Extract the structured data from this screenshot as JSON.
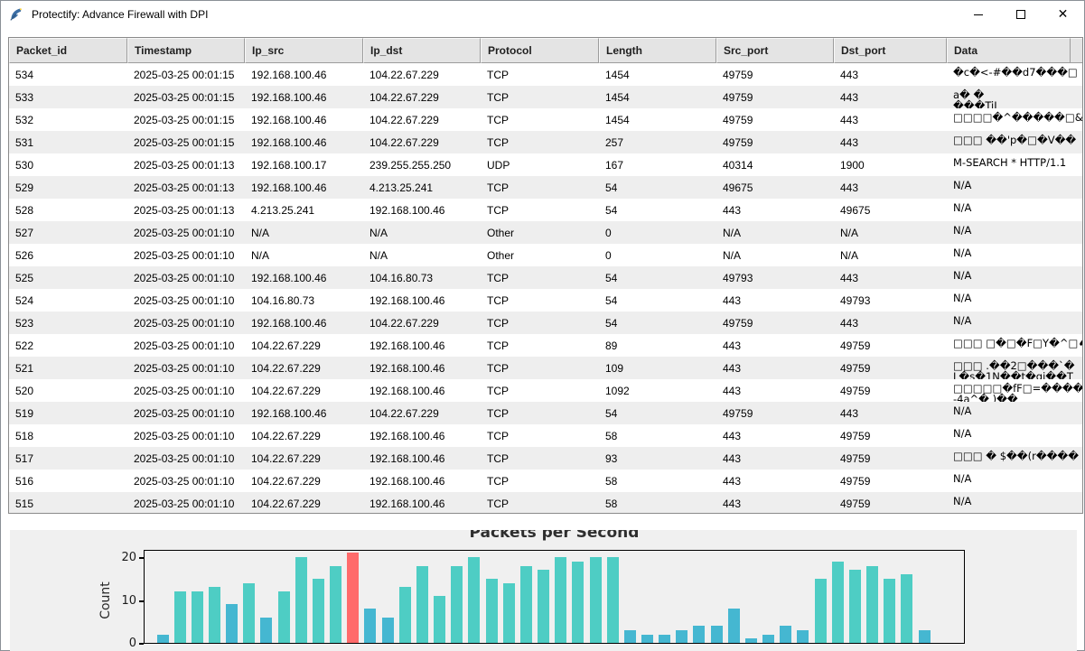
{
  "window": {
    "title": "Protectify: Advance Firewall with DPI",
    "icon": "python-feather-icon",
    "controls": {
      "minimize": "minimize-icon",
      "maximize": "maximize-icon",
      "close": "close-icon"
    }
  },
  "table": {
    "columns": [
      "Packet_id",
      "Timestamp",
      "Ip_src",
      "Ip_dst",
      "Protocol",
      "Length",
      "Src_port",
      "Dst_port",
      "Data"
    ],
    "rows": [
      [
        "534",
        "2025-03-25 00:01:15",
        "192.168.100.46",
        "104.22.67.229",
        "TCP",
        "1454",
        "49759",
        "443",
        "�c�<-#��d7���□"
      ],
      [
        "533",
        "2025-03-25 00:01:15",
        "192.168.100.46",
        "104.22.67.229",
        "TCP",
        "1454",
        "49759",
        "443",
        "a� �\n���TiL"
      ],
      [
        "532",
        "2025-03-25 00:01:15",
        "192.168.100.46",
        "104.22.67.229",
        "TCP",
        "1454",
        "49759",
        "443",
        "□□□□�^�����□&C·"
      ],
      [
        "531",
        "2025-03-25 00:01:15",
        "192.168.100.46",
        "104.22.67.229",
        "TCP",
        "257",
        "49759",
        "443",
        "□□□ ��'p�□�V��"
      ],
      [
        "530",
        "2025-03-25 00:01:13",
        "192.168.100.17",
        "239.255.255.250",
        "UDP",
        "167",
        "40314",
        "1900",
        "M-SEARCH * HTTP/1.1"
      ],
      [
        "529",
        "2025-03-25 00:01:13",
        "192.168.100.46",
        "4.213.25.241",
        "TCP",
        "54",
        "49675",
        "443",
        "N/A"
      ],
      [
        "528",
        "2025-03-25 00:01:13",
        "4.213.25.241",
        "192.168.100.46",
        "TCP",
        "54",
        "443",
        "49675",
        "N/A"
      ],
      [
        "527",
        "2025-03-25 00:01:10",
        "N/A",
        "N/A",
        "Other",
        "0",
        "N/A",
        "N/A",
        "N/A"
      ],
      [
        "526",
        "2025-03-25 00:01:10",
        "N/A",
        "N/A",
        "Other",
        "0",
        "N/A",
        "N/A",
        "N/A"
      ],
      [
        "525",
        "2025-03-25 00:01:10",
        "192.168.100.46",
        "104.16.80.73",
        "TCP",
        "54",
        "49793",
        "443",
        "N/A"
      ],
      [
        "524",
        "2025-03-25 00:01:10",
        "104.16.80.73",
        "192.168.100.46",
        "TCP",
        "54",
        "443",
        "49793",
        "N/A"
      ],
      [
        "523",
        "2025-03-25 00:01:10",
        "192.168.100.46",
        "104.22.67.229",
        "TCP",
        "54",
        "49759",
        "443",
        "N/A"
      ],
      [
        "522",
        "2025-03-25 00:01:10",
        "104.22.67.229",
        "192.168.100.46",
        "TCP",
        "89",
        "443",
        "49759",
        "□□□ □�□�F□Y�^□♠I"
      ],
      [
        "521",
        "2025-03-25 00:01:10",
        "104.22.67.229",
        "192.168.100.46",
        "TCP",
        "109",
        "443",
        "49759",
        "□□□ .��2□���`�\nL�s�1N��t�gi��T"
      ],
      [
        "520",
        "2025-03-25 00:01:10",
        "104.22.67.229",
        "192.168.100.46",
        "TCP",
        "1092",
        "443",
        "49759",
        "□□□□□�fF□=����\n-4a^�         )��"
      ],
      [
        "519",
        "2025-03-25 00:01:10",
        "192.168.100.46",
        "104.22.67.229",
        "TCP",
        "54",
        "49759",
        "443",
        "N/A"
      ],
      [
        "518",
        "2025-03-25 00:01:10",
        "104.22.67.229",
        "192.168.100.46",
        "TCP",
        "58",
        "443",
        "49759",
        "N/A"
      ],
      [
        "517",
        "2025-03-25 00:01:10",
        "104.22.67.229",
        "192.168.100.46",
        "TCP",
        "93",
        "443",
        "49759",
        "□□□ � $��(r����"
      ],
      [
        "516",
        "2025-03-25 00:01:10",
        "104.22.67.229",
        "192.168.100.46",
        "TCP",
        "58",
        "443",
        "49759",
        "N/A"
      ],
      [
        "515",
        "2025-03-25 00:01:10",
        "104.22.67.229",
        "192.168.100.46",
        "TCP",
        "58",
        "443",
        "49759",
        "N/A"
      ]
    ],
    "scrollbar": {
      "up_icon": "▲",
      "down_icon": "▼"
    }
  },
  "chart_data": {
    "type": "bar",
    "title": "Packets per Second",
    "xlabel": "",
    "ylabel": "Count",
    "yticks": [
      0,
      10,
      20
    ],
    "ylim": [
      0,
      21.5
    ],
    "x_tick_labels_visible": false,
    "legend": "none",
    "palette": {
      "teal": "#4ECDC4",
      "blue": "#45B7D1",
      "red": "#FF6B6B"
    },
    "values": [
      2,
      12,
      12,
      13,
      9,
      14,
      6,
      12,
      20,
      15,
      18,
      21,
      8,
      6,
      13,
      18,
      11,
      18,
      20,
      15,
      14,
      18,
      17,
      20,
      19,
      20,
      20,
      3,
      2,
      2,
      3,
      4,
      4,
      8,
      1,
      2,
      4,
      3,
      15,
      19,
      17,
      18,
      15,
      16,
      3
    ],
    "colors": [
      "blue",
      "teal",
      "teal",
      "teal",
      "blue",
      "teal",
      "blue",
      "teal",
      "teal",
      "teal",
      "teal",
      "red",
      "blue",
      "blue",
      "teal",
      "teal",
      "teal",
      "teal",
      "teal",
      "teal",
      "teal",
      "teal",
      "teal",
      "teal",
      "teal",
      "teal",
      "teal",
      "blue",
      "blue",
      "blue",
      "blue",
      "blue",
      "blue",
      "blue",
      "blue",
      "blue",
      "blue",
      "blue",
      "teal",
      "teal",
      "teal",
      "teal",
      "teal",
      "teal",
      "blue"
    ]
  }
}
